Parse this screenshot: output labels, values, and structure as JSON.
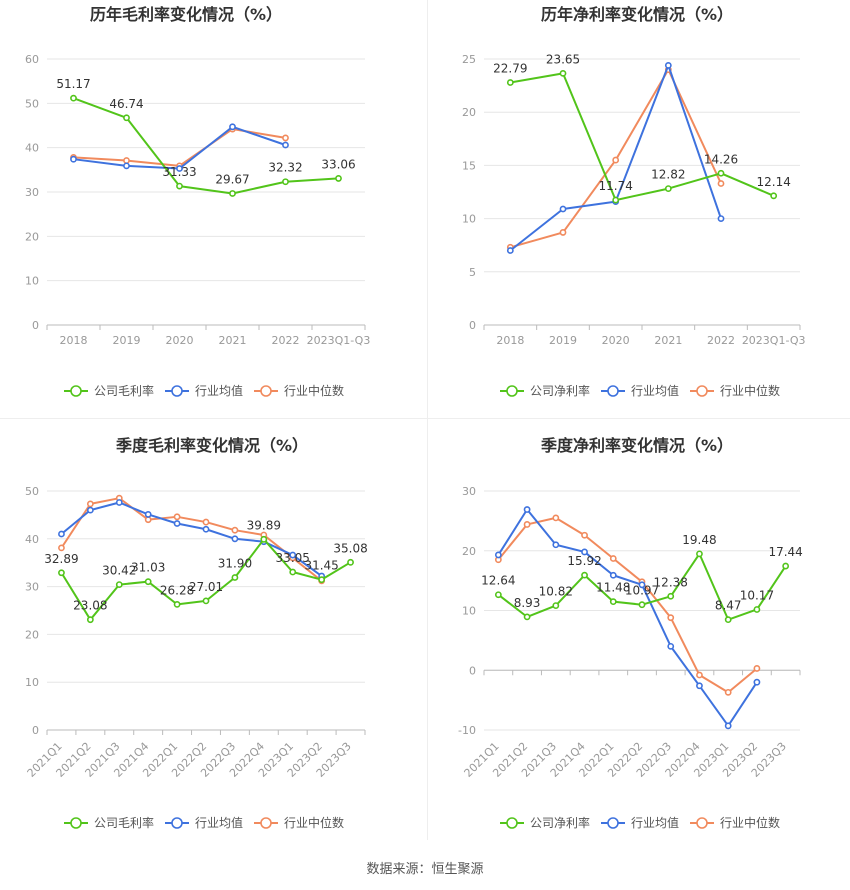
{
  "source": "数据来源：恒生聚源",
  "colors": {
    "company": "#52c41a",
    "avg": "#3e72de",
    "median": "#f18a5d",
    "grid": "#e6e6e6",
    "axis": "#999999",
    "text": "#333333"
  },
  "chart_data": [
    {
      "type": "line",
      "title": "历年毛利率变化情况（%）",
      "categories": [
        "2018",
        "2019",
        "2020",
        "2021",
        "2022",
        "2023Q1-Q3"
      ],
      "ylim": [
        0,
        60
      ],
      "yticks": [
        "0",
        "10",
        "20",
        "30",
        "40",
        "50",
        "60"
      ],
      "legend": [
        "公司毛利率",
        "行业均值",
        "行业中位数"
      ],
      "series": [
        {
          "name": "公司毛利率",
          "values": [
            51.17,
            46.74,
            31.33,
            29.67,
            32.32,
            33.06
          ],
          "labels": [
            "51.17",
            "46.74",
            "31.33",
            "29.67",
            "32.32",
            "33.06"
          ]
        },
        {
          "name": "行业均值",
          "values": [
            37.4,
            35.9,
            35.3,
            44.7,
            40.6,
            null
          ]
        },
        {
          "name": "行业中位数",
          "values": [
            37.8,
            37.1,
            35.9,
            44.2,
            42.2,
            null
          ]
        }
      ]
    },
    {
      "type": "line",
      "title": "历年净利率变化情况（%）",
      "categories": [
        "2018",
        "2019",
        "2020",
        "2021",
        "2022",
        "2023Q1-Q3"
      ],
      "ylim": [
        0,
        25
      ],
      "yticks": [
        "0",
        "5",
        "10",
        "15",
        "20",
        "25"
      ],
      "legend": [
        "公司净利率",
        "行业均值",
        "行业中位数"
      ],
      "series": [
        {
          "name": "公司净利率",
          "values": [
            22.79,
            23.65,
            11.74,
            12.82,
            14.26,
            12.14
          ],
          "labels": [
            "22.79",
            "23.65",
            "11.74",
            "12.82",
            "14.26",
            "12.14"
          ]
        },
        {
          "name": "行业均值",
          "values": [
            7.0,
            10.9,
            11.6,
            24.4,
            10.0,
            null
          ]
        },
        {
          "name": "行业中位数",
          "values": [
            7.3,
            8.7,
            15.5,
            24.0,
            13.3,
            null
          ]
        }
      ]
    },
    {
      "type": "line",
      "title": "季度毛利率变化情况（%）",
      "categories": [
        "2021Q1",
        "2021Q2",
        "2021Q3",
        "2021Q4",
        "2022Q1",
        "2022Q2",
        "2022Q3",
        "2022Q4",
        "2023Q1",
        "2023Q2",
        "2023Q3"
      ],
      "ylim": [
        0,
        50
      ],
      "yticks": [
        "0",
        "10",
        "20",
        "30",
        "40",
        "50"
      ],
      "legend": [
        "公司毛利率",
        "行业均值",
        "行业中位数"
      ],
      "series": [
        {
          "name": "公司毛利率",
          "values": [
            32.89,
            23.08,
            30.42,
            31.03,
            26.28,
            27.01,
            31.9,
            39.89,
            33.05,
            31.45,
            35.08
          ],
          "labels": [
            "32.89",
            "23.08",
            "30.42",
            "31.03",
            "26.28",
            "27.01",
            "31.90",
            "39.89",
            "33.05",
            "31.45",
            "35.08"
          ]
        },
        {
          "name": "行业均值",
          "values": [
            41.0,
            46.0,
            47.6,
            45.1,
            43.2,
            42.0,
            40.0,
            39.4,
            36.6,
            32.2,
            null
          ]
        },
        {
          "name": "行业中位数",
          "values": [
            38.1,
            47.3,
            48.5,
            44.0,
            44.6,
            43.5,
            41.8,
            40.8,
            36.0,
            31.2,
            null
          ]
        }
      ]
    },
    {
      "type": "line",
      "title": "季度净利率变化情况（%）",
      "categories": [
        "2021Q1",
        "2021Q2",
        "2021Q3",
        "2021Q4",
        "2022Q1",
        "2022Q2",
        "2022Q3",
        "2022Q4",
        "2023Q1",
        "2023Q2",
        "2023Q3"
      ],
      "ylim": [
        -10,
        30
      ],
      "yticks": [
        "-10",
        "0",
        "10",
        "20",
        "30"
      ],
      "legend": [
        "公司净利率",
        "行业均值",
        "行业中位数"
      ],
      "series": [
        {
          "name": "公司净利率",
          "values": [
            12.64,
            8.93,
            10.82,
            15.92,
            11.48,
            10.97,
            12.38,
            19.48,
            8.47,
            10.17,
            17.44
          ],
          "labels": [
            "12.64",
            "8.93",
            "10.82",
            "15.92",
            "11.48",
            "10.97",
            "12.38",
            "19.48",
            "8.47",
            "10.17",
            "17.44"
          ]
        },
        {
          "name": "行业均值",
          "values": [
            19.3,
            26.9,
            21.0,
            19.8,
            15.9,
            14.3,
            4.0,
            -2.6,
            -9.3,
            -2.0,
            null
          ]
        },
        {
          "name": "行业中位数",
          "values": [
            18.5,
            24.4,
            25.5,
            22.6,
            18.7,
            14.8,
            8.8,
            -0.8,
            -3.7,
            0.3,
            null
          ]
        }
      ]
    }
  ]
}
